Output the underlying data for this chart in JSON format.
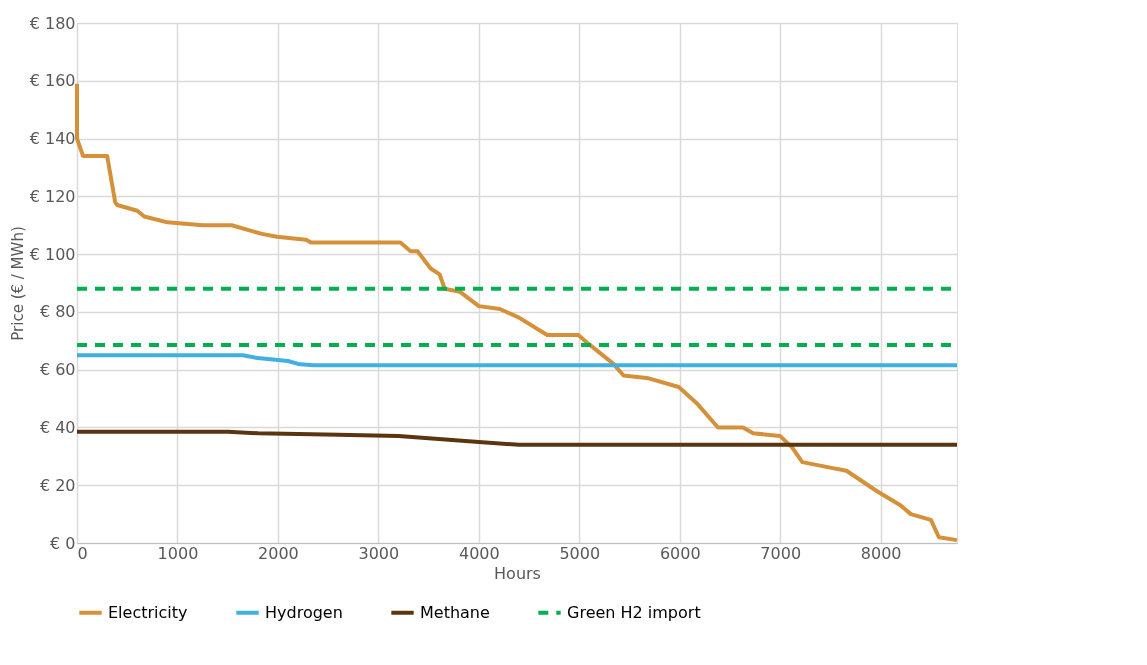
{
  "chart_data": {
    "type": "line",
    "xlabel": "Hours",
    "ylabel": "Price  (€ / MWh)",
    "xlim": [
      0,
      8760
    ],
    "xticks": [
      0,
      1000,
      2000,
      3000,
      4000,
      5000,
      6000,
      7000,
      8000
    ],
    "ylim": [
      0,
      180
    ],
    "yticks": [
      {
        "value": 0,
        "label": "€ 0"
      },
      {
        "value": 20,
        "label": "€ 20"
      },
      {
        "value": 40,
        "label": "€ 40"
      },
      {
        "value": 60,
        "label": "€ 60"
      },
      {
        "value": 80,
        "label": "€ 80"
      },
      {
        "value": 100,
        "label": "€ 100"
      },
      {
        "value": 120,
        "label": "€ 120"
      },
      {
        "value": 140,
        "label": "€ 140"
      },
      {
        "value": 160,
        "label": "€ 160"
      },
      {
        "value": 180,
        "label": "€ 180"
      }
    ],
    "grid": true,
    "legend": "bottom",
    "marker": "none",
    "series": [
      {
        "name": "Electricity",
        "color": "#d4913a",
        "line_style": "solid",
        "x": [
          0,
          0,
          60,
          300,
          380,
          400,
          600,
          670,
          900,
          1250,
          1540,
          1840,
          1990,
          2280,
          2330,
          2630,
          3220,
          3320,
          3390,
          3520,
          3610,
          3660,
          3810,
          4000,
          4210,
          4400,
          4680,
          4990,
          5090,
          5340,
          5440,
          5690,
          5990,
          6180,
          6380,
          6630,
          6730,
          7000,
          7120,
          7220,
          7510,
          7660,
          7960,
          8200,
          8300,
          8500,
          8580,
          8760
        ],
        "values": [
          159,
          140,
          134,
          134,
          118,
          117,
          115,
          113,
          111,
          110,
          110,
          107,
          106,
          105,
          104,
          104,
          104,
          101,
          101,
          95,
          93,
          88,
          87,
          82,
          81,
          78,
          72,
          72,
          69,
          62,
          58,
          57,
          54,
          48,
          40,
          40,
          38,
          37,
          33,
          28,
          26,
          25,
          18,
          13,
          10,
          8,
          2,
          1
        ]
      },
      {
        "name": "Hydrogen",
        "color": "#3fb0e0",
        "line_style": "solid",
        "x": [
          0,
          1650,
          1800,
          2100,
          2200,
          2350,
          8760
        ],
        "values": [
          65,
          65,
          64,
          63,
          62,
          61.5,
          61.5
        ]
      },
      {
        "name": "Methane",
        "color": "#5a3510",
        "line_style": "solid",
        "x": [
          0,
          1500,
          1800,
          2600,
          3200,
          3600,
          4000,
          4400,
          8760
        ],
        "values": [
          38.5,
          38.5,
          38,
          37.5,
          37,
          36,
          35,
          34,
          34
        ]
      },
      {
        "name": "Green H2 import",
        "color": "#00b050",
        "line_style": "dashed",
        "x": [
          0,
          8760
        ],
        "values": [
          88,
          88
        ]
      },
      {
        "color": "#00b050",
        "line_style": "dashed",
        "x": [
          0,
          8760
        ],
        "values": [
          68.5,
          68.5
        ]
      }
    ]
  }
}
